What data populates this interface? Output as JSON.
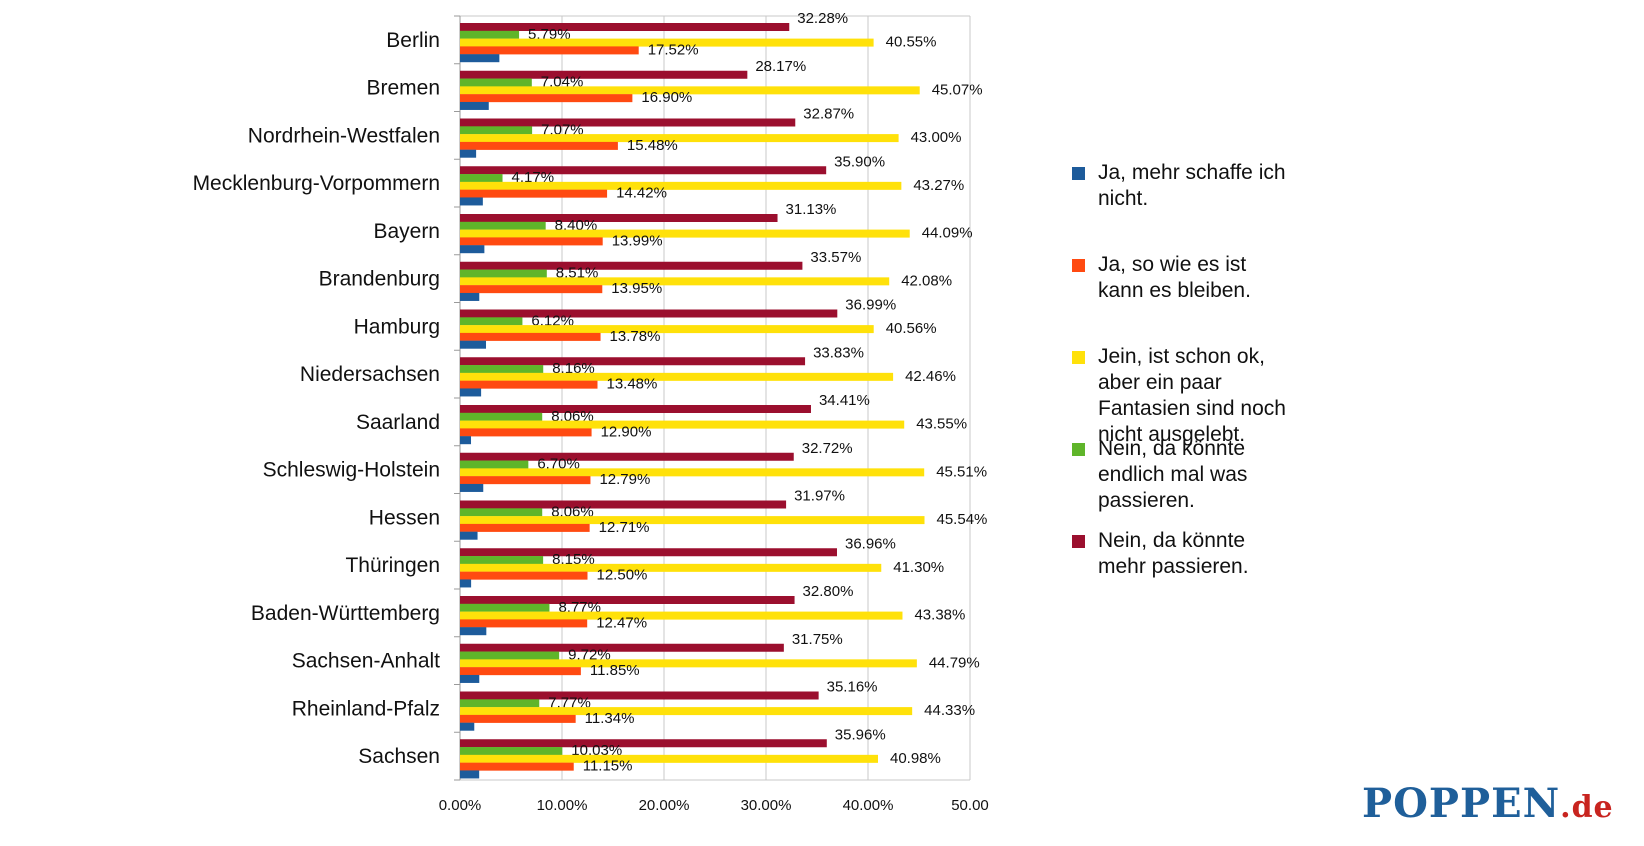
{
  "chart_data": {
    "type": "bar",
    "orientation": "horizontal",
    "categories": [
      "Berlin",
      "Bremen",
      "Nordrhein-Westfalen",
      "Mecklenburg-Vorpommern",
      "Bayern",
      "Brandenburg",
      "Hamburg",
      "Niedersachsen",
      "Saarland",
      "Schleswig-Holstein",
      "Hessen",
      "Thüringen",
      "Baden-Württemberg",
      "Sachsen-Anhalt",
      "Rheinland-Pfalz",
      "Sachsen"
    ],
    "series": [
      {
        "name": "Nein, da könnte\nmehr passieren.",
        "color": "#9b0f2e",
        "values": [
          32.28,
          28.17,
          32.87,
          35.9,
          31.13,
          33.57,
          36.99,
          33.83,
          34.41,
          32.72,
          31.97,
          36.96,
          32.8,
          31.75,
          35.16,
          35.96
        ],
        "labels": [
          "32.28%",
          "28.17%",
          "32.87%",
          "35.90%",
          "31.13%",
          "33.57%",
          "36.99%",
          "33.83%",
          "34.41%",
          "32.72%",
          "31.97%",
          "36.96%",
          "32.80%",
          "31.75%",
          "35.16%",
          "35.96%"
        ]
      },
      {
        "name": "Nein, da könnte\nendlich mal was\npassieren.",
        "color": "#5fb52a",
        "values": [
          5.79,
          7.04,
          7.07,
          4.17,
          8.4,
          8.51,
          6.12,
          8.16,
          8.06,
          6.7,
          8.06,
          8.15,
          8.77,
          9.72,
          7.77,
          10.03
        ],
        "labels": [
          "5.79%",
          "7.04%",
          "7.07%",
          "4.17%",
          "8.40%",
          "8.51%",
          "6.12%",
          "8.16%",
          "8.06%",
          "6.70%",
          "8.06%",
          "8.15%",
          "8.77%",
          "9.72%",
          "7.77%",
          "10.03%"
        ]
      },
      {
        "name": "Jein, ist schon ok,\naber ein paar\nFantasien sind noch\nnicht ausgelebt.",
        "color": "#ffe10a",
        "values": [
          40.55,
          45.07,
          43.0,
          43.27,
          44.09,
          42.08,
          40.56,
          42.46,
          43.55,
          45.51,
          45.54,
          41.3,
          43.38,
          44.79,
          44.33,
          40.98
        ],
        "labels": [
          "40.55%",
          "45.07%",
          "43.00%",
          "43.27%",
          "44.09%",
          "42.08%",
          "40.56%",
          "42.46%",
          "43.55%",
          "45.51%",
          "45.54%",
          "41.30%",
          "43.38%",
          "44.79%",
          "44.33%",
          "40.98%"
        ]
      },
      {
        "name": "Ja, so wie es ist\nkann es bleiben.",
        "color": "#ff4a11",
        "values": [
          17.52,
          16.9,
          15.48,
          14.42,
          13.99,
          13.95,
          13.78,
          13.48,
          12.9,
          12.79,
          12.71,
          12.5,
          12.47,
          11.85,
          11.34,
          11.15
        ],
        "labels": [
          "17.52%",
          "16.90%",
          "15.48%",
          "14.42%",
          "13.99%",
          "13.95%",
          "13.78%",
          "13.48%",
          "12.90%",
          "12.79%",
          "12.71%",
          "12.50%",
          "12.47%",
          "11.85%",
          "11.34%",
          "11.15%"
        ]
      },
      {
        "name": "Ja, mehr schaffe ich\nnicht.",
        "color": "#1d5b9b",
        "values": [
          3.86,
          2.82,
          1.58,
          2.24,
          2.39,
          1.89,
          2.55,
          2.07,
          1.08,
          2.28,
          1.72,
          1.09,
          2.58,
          1.89,
          1.4,
          1.88
        ],
        "labels": null
      }
    ],
    "legend_order": [
      4,
      3,
      2,
      1,
      0
    ],
    "xlim": [
      0,
      50
    ],
    "xticks": [
      "0.00%",
      "10.00%",
      "20.00%",
      "30.00%",
      "40.00%",
      "50.00"
    ],
    "grid": true,
    "legend_position": "right"
  },
  "logo": {
    "main": "POPPEN",
    "suffix": ".de"
  }
}
